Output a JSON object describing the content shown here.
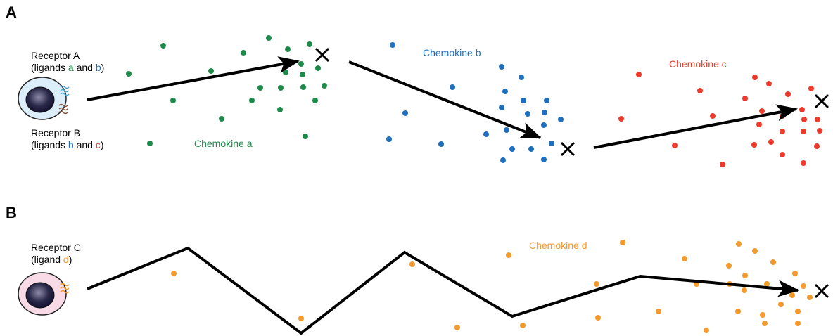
{
  "colors": {
    "chemokine_a": "#1e8a4a",
    "chemokine_b": "#1f6fbf",
    "chemokine_c": "#ee3a2c",
    "chemokine_d": "#f39a2e",
    "path": "#000000",
    "cell_a_fill": "#dceefa",
    "cell_c_fill": "#f8dbe6"
  },
  "panel_a": {
    "letter": "A",
    "receptor_a": {
      "name": "Receptor A",
      "prefix": "(ligands ",
      "lig1": "a",
      "mid": " and ",
      "lig2": "b",
      "suffix": ")"
    },
    "receptor_b": {
      "name": "Receptor B",
      "prefix": "(ligands ",
      "lig1": "b",
      "mid": " and ",
      "lig2": "c",
      "suffix": ")"
    },
    "chemokine_a_label": "Chemokine a",
    "chemokine_b_label": "Chemokine b",
    "chemokine_c_label": "Chemokine c"
  },
  "panel_b": {
    "letter": "B",
    "receptor_c": {
      "name": "Receptor C",
      "prefix": "(ligand ",
      "lig1": "d",
      "suffix": ")"
    },
    "chemokine_d_label": "Chemokine d"
  },
  "icons": {
    "cell": "cell-icon",
    "target": "x-mark-icon",
    "arrow": "arrow-icon"
  }
}
